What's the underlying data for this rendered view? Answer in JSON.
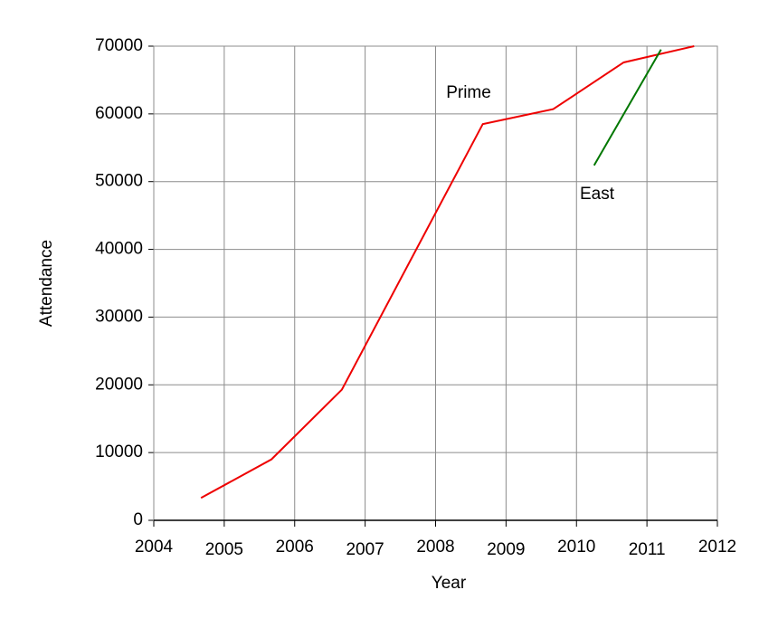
{
  "chart_data": {
    "type": "line",
    "x_label": "Year",
    "y_label": "Attendance",
    "series": [
      {
        "name": "Prime",
        "color": "#ee0000",
        "x": [
          2004.67,
          2005.67,
          2006.67,
          2008.67,
          2009.67,
          2010.67,
          2011.67
        ],
        "values": [
          3300,
          9000,
          19300,
          58500,
          60700,
          67600,
          70000
        ]
      },
      {
        "name": "East",
        "color": "#007700",
        "x": [
          2010.25,
          2011.2
        ],
        "values": [
          52400,
          69500
        ]
      }
    ],
    "xlim": [
      2004,
      2012
    ],
    "xticks": [
      2004,
      2005,
      2006,
      2007,
      2008,
      2009,
      2010,
      2011,
      2012
    ],
    "ylim": [
      0,
      70000
    ],
    "yticks": [
      0,
      10000,
      20000,
      30000,
      40000,
      50000,
      60000,
      70000
    ],
    "grid": true
  }
}
